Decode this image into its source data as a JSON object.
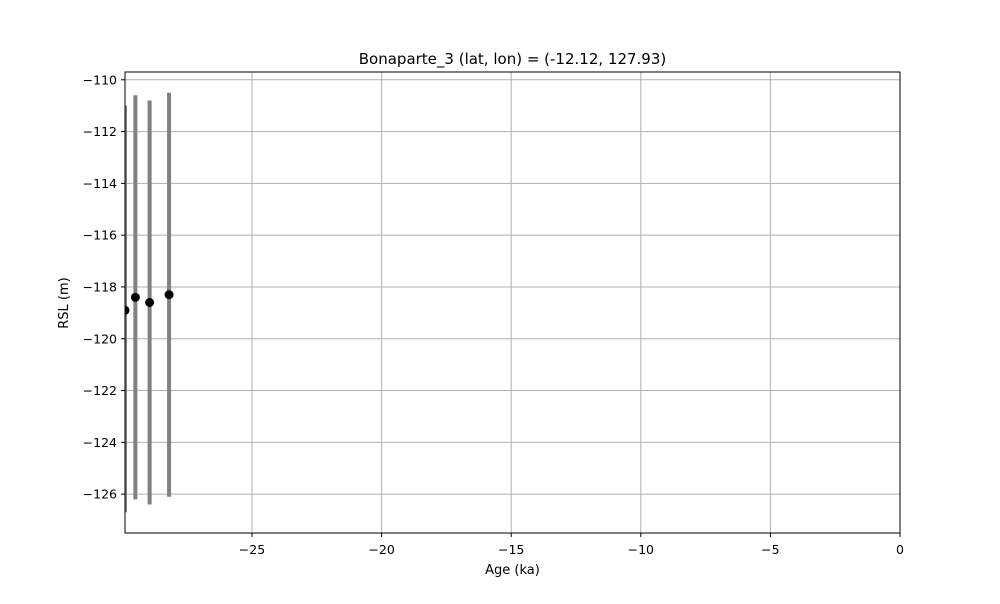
{
  "chart_data": {
    "type": "scatter",
    "title": "Bonaparte_3 (lat, lon) = (-12.12, 127.93)",
    "xlabel": "Age (ka)",
    "ylabel": "RSL (m)",
    "xlim": [
      -29.9,
      0
    ],
    "ylim": [
      -127.5,
      -109.7
    ],
    "xticks": [
      -25,
      -20,
      -15,
      -10,
      -5,
      0
    ],
    "yticks": [
      -126,
      -124,
      -122,
      -120,
      -118,
      -116,
      -114,
      -112,
      -110
    ],
    "grid": true,
    "points": [
      {
        "x": -29.9,
        "y": -118.9,
        "ylow": -126.7,
        "yhigh": -111.0
      },
      {
        "x": -29.5,
        "y": -118.4,
        "ylow": -126.2,
        "yhigh": -110.6
      },
      {
        "x": -28.95,
        "y": -118.6,
        "ylow": -126.4,
        "yhigh": -110.8
      },
      {
        "x": -28.2,
        "y": -118.3,
        "ylow": -126.1,
        "yhigh": -110.5
      }
    ],
    "marker_color": "#000000",
    "errorbar_color": "#808080",
    "grid_color": "#b0b0b0"
  }
}
